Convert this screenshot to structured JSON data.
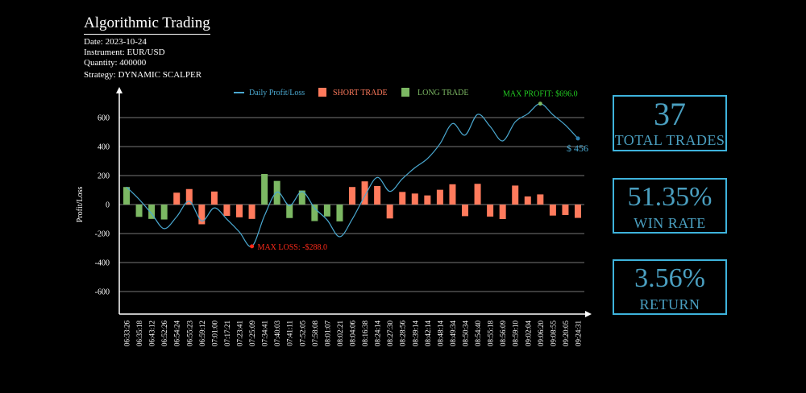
{
  "header": {
    "title": "Algorithmic Trading",
    "date": "Date: 2023-10-24",
    "instrument": "Instrument: EUR/USD",
    "quantity": "Quantity: 400000",
    "strategy": "Strategy: DYNAMIC SCALPER"
  },
  "stats": [
    {
      "value": "37",
      "label": "TOTAL TRADES"
    },
    {
      "value": "51.35%",
      "label": "WIN RATE"
    },
    {
      "value": "3.56%",
      "label": "RETURN"
    }
  ],
  "colors": {
    "short": "#ff7a5c",
    "long": "#7cb863",
    "line": "#4aa8d0",
    "max_profit": "#22cc22",
    "max_loss": "#ff2a1a",
    "stat": "#3eb3dc"
  },
  "chart_data": {
    "type": "bar+line",
    "ylabel": "Profit/Loss",
    "ylim": [
      -700,
      700
    ],
    "yticks": [
      -600,
      -400,
      -200,
      0,
      200,
      400,
      600
    ],
    "grid": true,
    "legend_placement": "top",
    "legend": [
      {
        "name": "Daily Profit/Loss",
        "kind": "line"
      },
      {
        "name": "SHORT TRADE",
        "kind": "short"
      },
      {
        "name": "LONG TRADE",
        "kind": "long"
      }
    ],
    "categories": [
      "06:33:26",
      "06:35:18",
      "06:43:12",
      "06:52:26",
      "06:54:24",
      "06:55:23",
      "06:59:12",
      "07:01:00",
      "07:17:21",
      "07:23:41",
      "07:25:09",
      "07:34:41",
      "07:40:03",
      "07:41:11",
      "07:52:05",
      "07:58:08",
      "08:01:07",
      "08:02:21",
      "08:04:06",
      "08:16:38",
      "08:24:14",
      "08:27:30",
      "08:28:56",
      "08:39:14",
      "08:42:14",
      "08:48:14",
      "08:49:34",
      "08:50:34",
      "08:54:40",
      "08:55:18",
      "08:56:09",
      "08:59:10",
      "09:02:04",
      "09:06:20",
      "09:08:55",
      "09:20:05",
      "09:24:31"
    ],
    "trade_type": [
      "long",
      "long",
      "long",
      "long",
      "short",
      "short",
      "short",
      "short",
      "short",
      "short",
      "short",
      "long",
      "long",
      "long",
      "long",
      "long",
      "long",
      "long",
      "short",
      "short",
      "short",
      "short",
      "short",
      "short",
      "short",
      "short",
      "short",
      "short",
      "short",
      "short",
      "short",
      "short",
      "short",
      "short",
      "short",
      "short",
      "short"
    ],
    "values": [
      121,
      -85,
      -99,
      -103,
      82,
      107,
      -136,
      90,
      -78,
      -88,
      -99,
      211,
      163,
      -93,
      97,
      -114,
      -82,
      -116,
      121,
      160,
      128,
      -96,
      87,
      76,
      63,
      102,
      140,
      -80,
      143,
      -83,
      -100,
      131,
      56,
      70,
      -76,
      -72,
      -92
    ],
    "annotations": {
      "max_profit": "MAX PROFIT: $696.0",
      "max_loss": "MAX LOSS: -$288.0",
      "final": "$ 456"
    }
  }
}
